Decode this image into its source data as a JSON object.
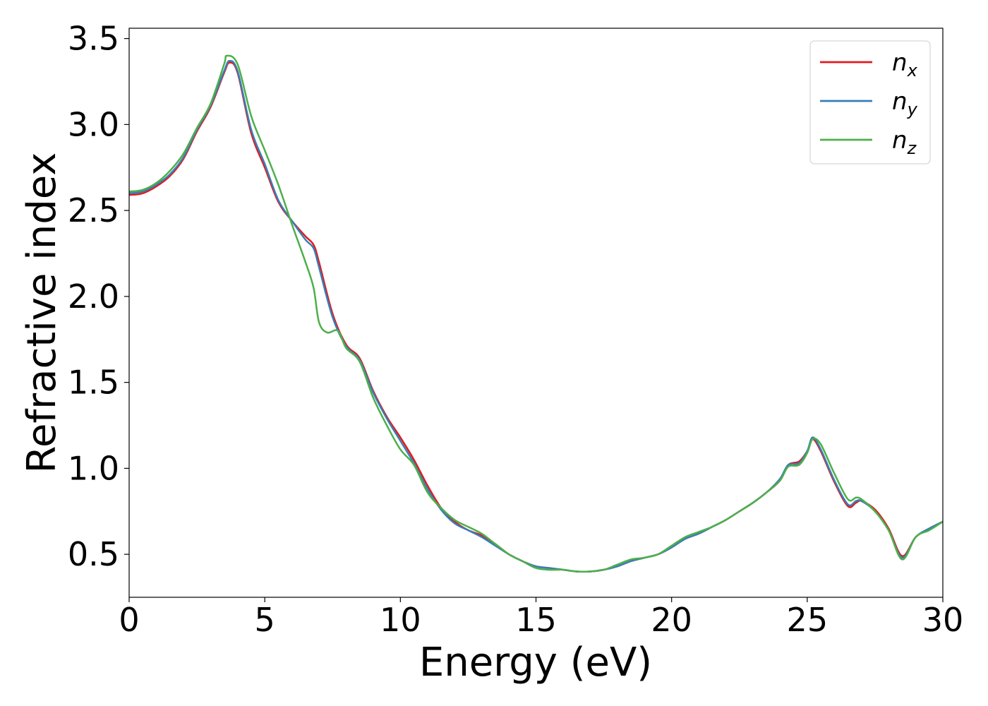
{
  "chart_data": {
    "type": "line",
    "xlabel": "Energy (eV)",
    "ylabel": "Refractive index",
    "xlim": [
      0,
      30
    ],
    "ylim": [
      0.25,
      3.56
    ],
    "xticks": [
      0,
      5,
      10,
      15,
      20,
      25,
      30
    ],
    "xtick_labels": [
      "0",
      "5",
      "10",
      "15",
      "20",
      "25",
      "30"
    ],
    "yticks": [
      0.5,
      1.0,
      1.5,
      2.0,
      2.5,
      3.0,
      3.5
    ],
    "ytick_labels": [
      "0.5",
      "1.0",
      "1.5",
      "2.0",
      "2.5",
      "3.0",
      "3.5"
    ],
    "grid": false,
    "legend_position": "top-right",
    "series": [
      {
        "name": "n",
        "subscript": "x",
        "color": "#e41a1c",
        "x": [
          0,
          0.5,
          1,
          1.5,
          2,
          2.5,
          3,
          3.5,
          3.7,
          4,
          4.5,
          5,
          5.5,
          6,
          6.5,
          6.8,
          7,
          7.5,
          8,
          8.5,
          9,
          9.5,
          10,
          10.5,
          11,
          11.5,
          12,
          12.5,
          13,
          13.5,
          14,
          14.5,
          15,
          15.5,
          16,
          16.5,
          17,
          17.5,
          18,
          18.5,
          19,
          19.5,
          20,
          20.5,
          21,
          21.5,
          22,
          22.5,
          23,
          23.5,
          24,
          24.3,
          24.7,
          25,
          25.2,
          25.5,
          26,
          26.5,
          26.8,
          27,
          27.5,
          28,
          28.5,
          29,
          29.5,
          30
        ],
        "y": [
          2.59,
          2.6,
          2.64,
          2.7,
          2.8,
          2.96,
          3.1,
          3.3,
          3.36,
          3.3,
          2.95,
          2.75,
          2.55,
          2.44,
          2.35,
          2.3,
          2.2,
          1.9,
          1.72,
          1.64,
          1.45,
          1.3,
          1.18,
          1.05,
          0.9,
          0.77,
          0.69,
          0.64,
          0.61,
          0.56,
          0.5,
          0.46,
          0.43,
          0.42,
          0.41,
          0.4,
          0.4,
          0.41,
          0.43,
          0.46,
          0.48,
          0.5,
          0.54,
          0.59,
          0.62,
          0.66,
          0.7,
          0.75,
          0.8,
          0.86,
          0.93,
          1.02,
          1.04,
          1.1,
          1.17,
          1.1,
          0.92,
          0.78,
          0.8,
          0.81,
          0.76,
          0.65,
          0.49,
          0.6,
          0.65,
          0.69
        ]
      },
      {
        "name": "n",
        "subscript": "y",
        "color": "#377eb8",
        "x": [
          0,
          0.5,
          1,
          1.5,
          2,
          2.5,
          3,
          3.5,
          3.7,
          4,
          4.5,
          5,
          5.5,
          6,
          6.5,
          6.8,
          7,
          7.5,
          8,
          8.5,
          9,
          9.5,
          10,
          10.5,
          11,
          11.5,
          12,
          12.5,
          13,
          13.5,
          14,
          14.5,
          15,
          15.5,
          16,
          16.5,
          17,
          17.5,
          18,
          18.5,
          19,
          19.5,
          20,
          20.5,
          21,
          21.5,
          22,
          22.5,
          23,
          23.5,
          24,
          24.3,
          24.7,
          25,
          25.2,
          25.5,
          26,
          26.5,
          26.8,
          27,
          27.5,
          28,
          28.5,
          29,
          29.5,
          30
        ],
        "y": [
          2.6,
          2.61,
          2.65,
          2.71,
          2.81,
          2.97,
          3.11,
          3.31,
          3.37,
          3.31,
          2.97,
          2.77,
          2.56,
          2.44,
          2.33,
          2.28,
          2.17,
          1.88,
          1.71,
          1.63,
          1.44,
          1.29,
          1.16,
          1.03,
          0.88,
          0.76,
          0.68,
          0.64,
          0.6,
          0.55,
          0.5,
          0.46,
          0.43,
          0.42,
          0.41,
          0.4,
          0.4,
          0.41,
          0.43,
          0.46,
          0.48,
          0.5,
          0.54,
          0.59,
          0.62,
          0.66,
          0.7,
          0.75,
          0.8,
          0.86,
          0.94,
          1.02,
          1.03,
          1.1,
          1.18,
          1.11,
          0.93,
          0.79,
          0.81,
          0.81,
          0.75,
          0.64,
          0.48,
          0.6,
          0.65,
          0.69
        ]
      },
      {
        "name": "n",
        "subscript": "z",
        "color": "#4daf4a",
        "x": [
          0,
          0.5,
          1,
          1.5,
          2,
          2.5,
          3,
          3.5,
          3.6,
          4,
          4.5,
          5,
          5.5,
          6,
          6.5,
          6.8,
          7,
          7.3,
          7.7,
          8,
          8.5,
          9,
          9.5,
          10,
          10.5,
          11,
          11.5,
          12,
          12.5,
          13,
          13.5,
          14,
          14.5,
          15,
          15.5,
          16,
          16.5,
          17,
          17.5,
          18,
          18.5,
          19,
          19.5,
          20,
          20.5,
          21,
          21.5,
          22,
          22.5,
          23,
          23.5,
          24,
          24.3,
          24.7,
          25,
          25.2,
          25.5,
          26,
          26.5,
          26.8,
          27,
          27.5,
          28,
          28.5,
          29,
          29.5,
          30
        ],
        "y": [
          2.61,
          2.62,
          2.66,
          2.73,
          2.83,
          2.98,
          3.12,
          3.35,
          3.4,
          3.35,
          3.05,
          2.85,
          2.65,
          2.42,
          2.2,
          2.05,
          1.85,
          1.79,
          1.8,
          1.7,
          1.62,
          1.41,
          1.25,
          1.11,
          1.02,
          0.86,
          0.77,
          0.7,
          0.66,
          0.62,
          0.56,
          0.5,
          0.46,
          0.42,
          0.41,
          0.41,
          0.4,
          0.4,
          0.41,
          0.44,
          0.47,
          0.48,
          0.5,
          0.55,
          0.6,
          0.63,
          0.66,
          0.7,
          0.75,
          0.8,
          0.86,
          0.93,
          1.01,
          1.02,
          1.09,
          1.17,
          1.14,
          0.97,
          0.82,
          0.83,
          0.82,
          0.75,
          0.64,
          0.47,
          0.6,
          0.64,
          0.69
        ]
      }
    ]
  }
}
